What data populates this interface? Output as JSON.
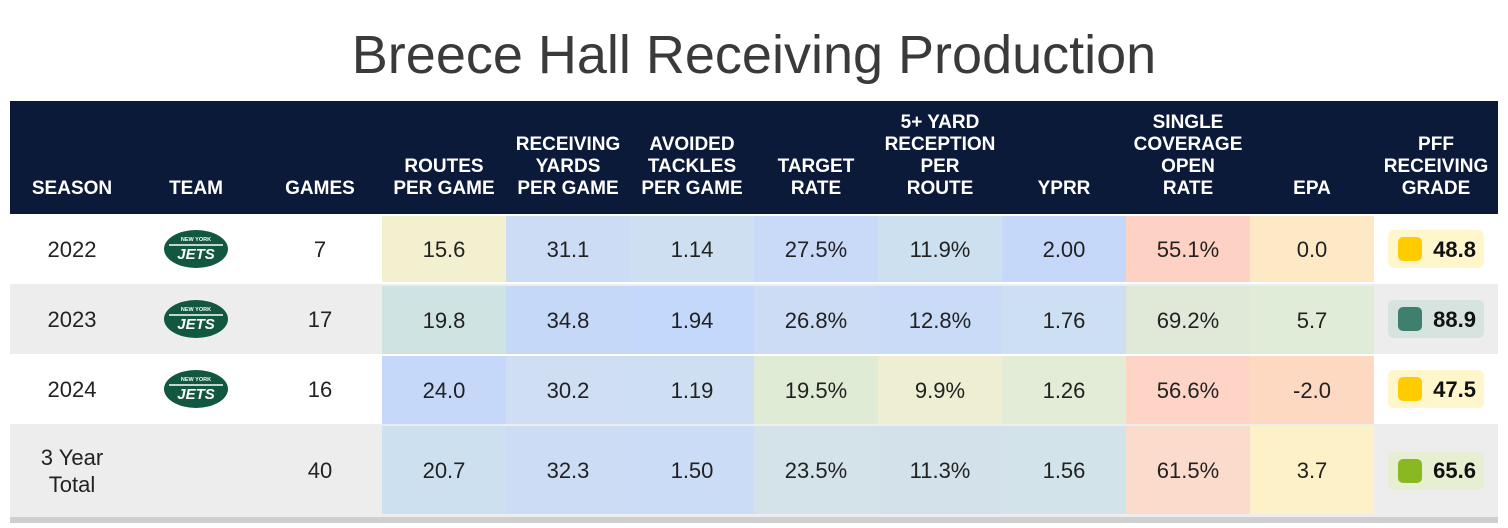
{
  "title": "Breece Hall Receiving Production",
  "columns": [
    {
      "key": "season",
      "label": "SEASON"
    },
    {
      "key": "team",
      "label": "TEAM"
    },
    {
      "key": "games",
      "label": "GAMES"
    },
    {
      "key": "routes",
      "label": "ROUTES\nPER GAME"
    },
    {
      "key": "yards",
      "label": "RECEIVING\nYARDS\nPER GAME"
    },
    {
      "key": "avoided",
      "label": "AVOIDED\nTACKLES\nPER GAME"
    },
    {
      "key": "target",
      "label": "TARGET\nRATE"
    },
    {
      "key": "five_plus",
      "label": "5+ YARD\nRECEPTION\nPER\nROUTE"
    },
    {
      "key": "yprr",
      "label": "YPRR"
    },
    {
      "key": "single",
      "label": "SINGLE\nCOVERAGE\nOPEN\nRATE"
    },
    {
      "key": "epa",
      "label": "EPA"
    },
    {
      "key": "grade",
      "label": "PFF\nRECEIVING\nGRADE"
    }
  ],
  "team_logo": {
    "icon": "new-york-jets-logo",
    "top_text": "NEW YORK",
    "main_text": "JETS",
    "color": "#125740"
  },
  "rows": [
    {
      "season": "2022",
      "has_logo": true,
      "games": "7",
      "routes": "15.6",
      "yards": "31.1",
      "avoided": "1.14",
      "target": "27.5%",
      "five_plus": "11.9%",
      "yprr": "2.00",
      "single": "55.1%",
      "epa": "0.0",
      "grade": "48.8",
      "colors": {
        "routes": "#f2f0cf",
        "yards": "#cddcf5",
        "avoided": "#cfdff2",
        "target": "#c8daf8",
        "five_plus": "#cde0f0",
        "yprr": "#c6d8fa",
        "single": "#fdd2c4",
        "epa": "#fde9c6"
      },
      "grade_color": "#ffcc00",
      "grade_bg": "#fff6cc"
    },
    {
      "season": "2023",
      "has_logo": true,
      "games": "17",
      "routes": "19.8",
      "yards": "34.8",
      "avoided": "1.94",
      "target": "26.8%",
      "five_plus": "12.8%",
      "yprr": "1.76",
      "single": "69.2%",
      "epa": "5.7",
      "grade": "88.9",
      "colors": {
        "routes": "#cfe3e3",
        "yards": "#c6d8f8",
        "avoided": "#c4d8fb",
        "target": "#ccdcf5",
        "five_plus": "#c9dbf6",
        "yprr": "#cddff2",
        "single": "#e0e9d8",
        "epa": "#e0ecd8"
      },
      "grade_color": "#3f7f6e",
      "grade_bg": "#d6e3df"
    },
    {
      "season": "2024",
      "has_logo": true,
      "games": "16",
      "routes": "24.0",
      "yards": "30.2",
      "avoided": "1.19",
      "target": "19.5%",
      "five_plus": "9.9%",
      "yprr": "1.26",
      "single": "56.6%",
      "epa": "-2.0",
      "grade": "47.5",
      "colors": {
        "routes": "#c6d8fa",
        "yards": "#cfdef3",
        "avoided": "#cedff3",
        "target": "#e0ebd5",
        "five_plus": "#edeed2",
        "yprr": "#e2ecd6",
        "single": "#fdd4c5",
        "epa": "#fdd9c2"
      },
      "grade_color": "#ffcc00",
      "grade_bg": "#fff6cc"
    },
    {
      "season": "3 Year Total",
      "has_logo": false,
      "games": "40",
      "routes": "20.7",
      "yards": "32.3",
      "avoided": "1.50",
      "target": "23.5%",
      "five_plus": "11.3%",
      "yprr": "1.56",
      "single": "61.5%",
      "epa": "3.7",
      "grade": "65.6",
      "colors": {
        "routes": "#cce0f0",
        "yards": "#cbdcf4",
        "avoided": "#cadcf6",
        "target": "#d4e3ea",
        "five_plus": "#d3e2ea",
        "yprr": "#d3e3ea",
        "single": "#fbdccc",
        "epa": "#fdf1c8"
      },
      "grade_color": "#8ab820",
      "grade_bg": "#e6efd2"
    }
  ]
}
